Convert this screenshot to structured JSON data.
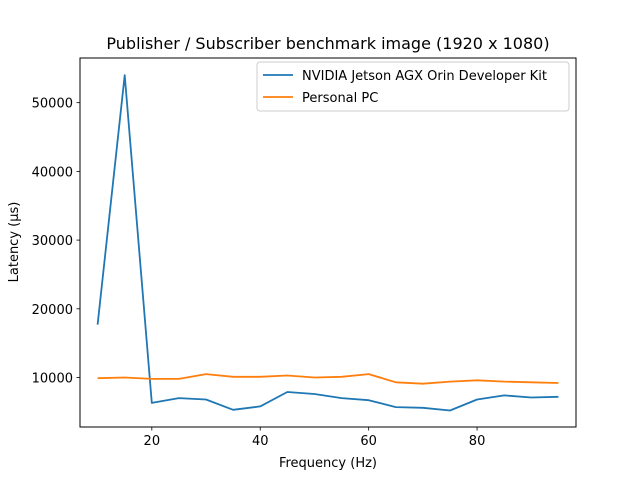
{
  "chart_data": {
    "type": "line",
    "title": "Publisher / Subscriber benchmark image (1920 x 1080)",
    "xlabel": "Frequency (Hz)",
    "ylabel": "Latency (µs)",
    "xlim": [
      6.75,
      98.25
    ],
    "ylim": [
      2800,
      56500
    ],
    "xticks": [
      20,
      40,
      60,
      80
    ],
    "yticks": [
      10000,
      20000,
      30000,
      40000,
      50000
    ],
    "grid": false,
    "legend_position": "top-right",
    "x": [
      10,
      15,
      20,
      25,
      30,
      35,
      40,
      45,
      50,
      55,
      60,
      65,
      70,
      75,
      80,
      85,
      90,
      95
    ],
    "series": [
      {
        "name": "NVIDIA Jetson AGX Orin Developer Kit",
        "color": "#1f77b4",
        "values": [
          17700,
          54000,
          6300,
          7000,
          6800,
          5300,
          5800,
          7900,
          7600,
          7000,
          6700,
          5700,
          5600,
          5200,
          6800,
          7400,
          7100,
          7200
        ]
      },
      {
        "name": "Personal PC",
        "color": "#ff7f0e",
        "values": [
          9900,
          10000,
          9800,
          9800,
          10500,
          10100,
          10100,
          10300,
          10000,
          10100,
          10500,
          9300,
          9100,
          9400,
          9600,
          9400,
          9300,
          9200
        ]
      }
    ]
  }
}
